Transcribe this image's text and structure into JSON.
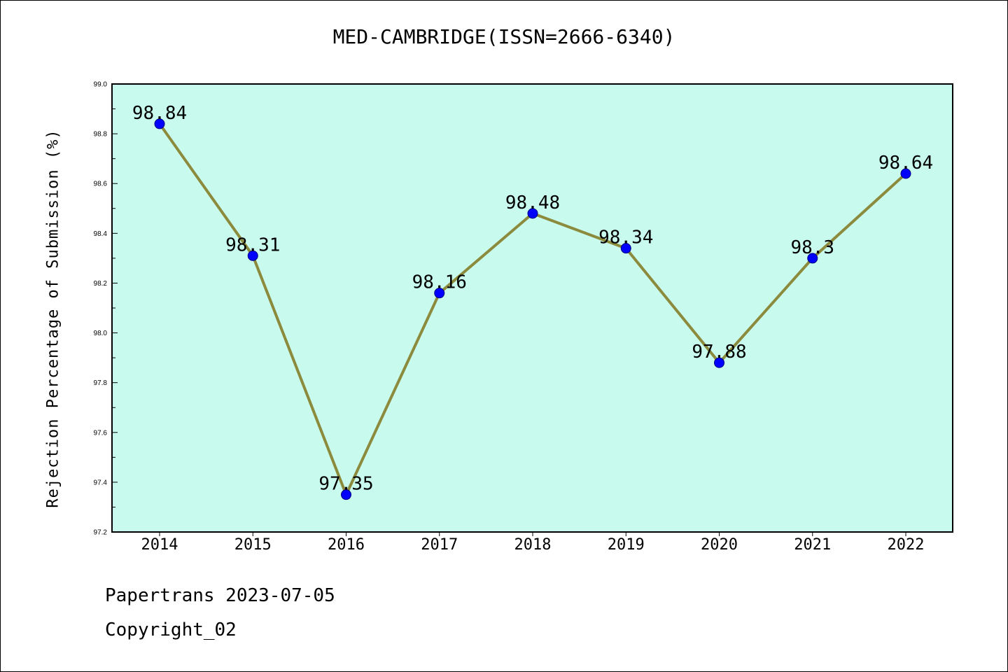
{
  "title": "MED-CAMBRIDGE(ISSN=2666-6340)",
  "footer": {
    "line1": "Papertrans 2023-07-05",
    "line2": "Copyright_02"
  },
  "chart_data": {
    "type": "line",
    "title": "MED-CAMBRIDGE(ISSN=2666-6340)",
    "xlabel": "",
    "ylabel": "Rejection Percentage of Submission (%)",
    "categories": [
      "2014",
      "2015",
      "2016",
      "2017",
      "2018",
      "2019",
      "2020",
      "2021",
      "2022"
    ],
    "values": [
      98.84,
      98.31,
      97.35,
      98.16,
      98.48,
      98.34,
      97.88,
      98.3,
      98.64
    ],
    "data_labels": [
      "98.84",
      "98.31",
      "97.35",
      "98.16",
      "98.48",
      "98.34",
      "97.88",
      "98.3",
      "98.64"
    ],
    "ylim": [
      97.2,
      99.0
    ],
    "y_ticks": [
      "97.2",
      "97.4",
      "97.6",
      "97.8",
      "98.0",
      "98.2",
      "98.4",
      "98.6",
      "98.8",
      "99.0"
    ],
    "grid": false,
    "colors": {
      "plot_background": "#c8fbee",
      "line": "#8c8a3c",
      "marker": "#0000ff",
      "marker_edge": "#000080"
    }
  }
}
